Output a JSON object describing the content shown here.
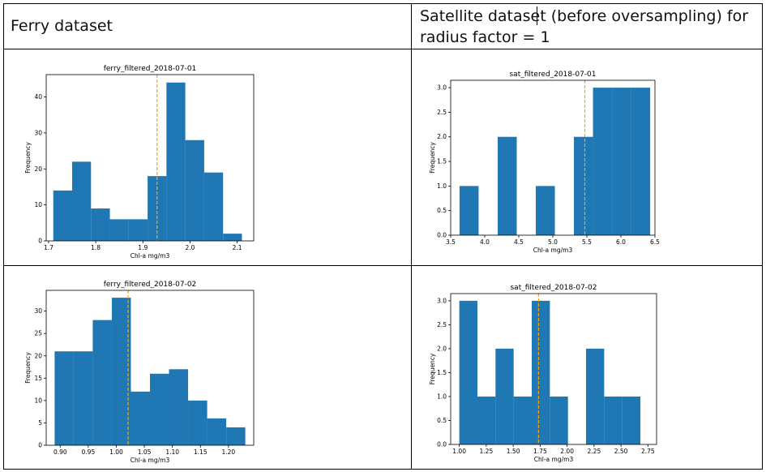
{
  "table": {
    "header_left": "Ferry dataset",
    "header_right_line1": "Satellite dataset (before oversampling) for",
    "header_right_line2": "radius factor = 1"
  },
  "chart_data": [
    {
      "id": "ferry1",
      "type": "bar",
      "title": "ferry_filtered_2018-07-01",
      "xlabel": "Chl-a mg/m3",
      "ylabel": "Frequency",
      "xlim": [
        1.695,
        2.135
      ],
      "ylim": [
        0,
        46.2
      ],
      "xticks": [
        1.7,
        1.8,
        1.9,
        2.0,
        2.1
      ],
      "xtick_labels": [
        "1.7",
        "1.8",
        "1.9",
        "2.0",
        "2.1"
      ],
      "yticks": [
        0,
        10,
        20,
        30,
        40
      ],
      "ytick_labels": [
        "0",
        "10",
        "20",
        "30",
        "40"
      ],
      "bins": [
        {
          "x0": 1.71,
          "x1": 1.75,
          "value": 14
        },
        {
          "x0": 1.75,
          "x1": 1.79,
          "value": 22
        },
        {
          "x0": 1.79,
          "x1": 1.83,
          "value": 9
        },
        {
          "x0": 1.83,
          "x1": 1.87,
          "value": 6
        },
        {
          "x0": 1.87,
          "x1": 1.91,
          "value": 6
        },
        {
          "x0": 1.91,
          "x1": 1.95,
          "value": 18
        },
        {
          "x0": 1.95,
          "x1": 1.99,
          "value": 44
        },
        {
          "x0": 1.99,
          "x1": 2.03,
          "value": 28
        },
        {
          "x0": 2.03,
          "x1": 2.07,
          "value": 19
        },
        {
          "x0": 2.07,
          "x1": 2.11,
          "value": 2
        }
      ],
      "vline": 1.93,
      "bar_color": "#1f77b4",
      "vline_color": "#ffa500"
    },
    {
      "id": "sat1",
      "type": "bar",
      "title": "sat_filtered_2018-07-01",
      "xlabel": "Chl-a mg/m3",
      "ylabel": "Frequency",
      "xlim": [
        3.5,
        6.5
      ],
      "ylim": [
        0,
        3.15
      ],
      "xticks": [
        3.5,
        4.0,
        4.5,
        5.0,
        5.5,
        6.0,
        6.5
      ],
      "xtick_labels": [
        "3.5",
        "4.0",
        "4.5",
        "5.0",
        "5.5",
        "6.0",
        "6.5"
      ],
      "yticks": [
        0,
        0.5,
        1.0,
        1.5,
        2.0,
        2.5,
        3.0
      ],
      "ytick_labels": [
        "0.0",
        "0.5",
        "1.0",
        "1.5",
        "2.0",
        "2.5",
        "3.0"
      ],
      "bins": [
        {
          "x0": 3.63,
          "x1": 3.91,
          "value": 1
        },
        {
          "x0": 3.91,
          "x1": 4.19,
          "value": 0
        },
        {
          "x0": 4.19,
          "x1": 4.47,
          "value": 2
        },
        {
          "x0": 4.47,
          "x1": 4.75,
          "value": 0
        },
        {
          "x0": 4.75,
          "x1": 5.03,
          "value": 1
        },
        {
          "x0": 5.03,
          "x1": 5.31,
          "value": 0
        },
        {
          "x0": 5.31,
          "x1": 5.59,
          "value": 2
        },
        {
          "x0": 5.59,
          "x1": 5.87,
          "value": 3
        },
        {
          "x0": 5.87,
          "x1": 6.15,
          "value": 3
        },
        {
          "x0": 6.15,
          "x1": 6.43,
          "value": 3
        }
      ],
      "vline": 5.47,
      "bar_color": "#1f77b4",
      "vline_color": "#ffa500"
    },
    {
      "id": "ferry2",
      "type": "bar",
      "title": "ferry_filtered_2018-07-02",
      "xlabel": "Chl-a mg/m3",
      "ylabel": "Frequency",
      "xlim": [
        0.875,
        1.245
      ],
      "ylim": [
        0,
        34.65
      ],
      "xticks": [
        0.9,
        0.95,
        1.0,
        1.05,
        1.1,
        1.15,
        1.2
      ],
      "xtick_labels": [
        "0.90",
        "0.95",
        "1.00",
        "1.05",
        "1.10",
        "1.15",
        "1.20"
      ],
      "yticks": [
        0,
        5,
        10,
        15,
        20,
        25,
        30
      ],
      "ytick_labels": [
        "0",
        "5",
        "10",
        "15",
        "20",
        "25",
        "30"
      ],
      "bins": [
        {
          "x0": 0.89,
          "x1": 0.924,
          "value": 21
        },
        {
          "x0": 0.924,
          "x1": 0.958,
          "value": 21
        },
        {
          "x0": 0.958,
          "x1": 0.992,
          "value": 28
        },
        {
          "x0": 0.992,
          "x1": 1.026,
          "value": 33
        },
        {
          "x0": 1.026,
          "x1": 1.06,
          "value": 12
        },
        {
          "x0": 1.06,
          "x1": 1.094,
          "value": 16
        },
        {
          "x0": 1.094,
          "x1": 1.128,
          "value": 17
        },
        {
          "x0": 1.128,
          "x1": 1.162,
          "value": 10
        },
        {
          "x0": 1.162,
          "x1": 1.196,
          "value": 6
        },
        {
          "x0": 1.196,
          "x1": 1.23,
          "value": 4
        }
      ],
      "vline": 1.021,
      "bar_color": "#1f77b4",
      "vline_color": "#ffa500"
    },
    {
      "id": "sat2",
      "type": "bar",
      "title": "sat_filtered_2018-07-02",
      "xlabel": "Chl-a mg/m3",
      "ylabel": "Frequency",
      "xlim": [
        0.92,
        2.83
      ],
      "ylim": [
        0,
        3.15
      ],
      "xticks": [
        1.0,
        1.25,
        1.5,
        1.75,
        2.0,
        2.25,
        2.5,
        2.75
      ],
      "xtick_labels": [
        "1.00",
        "1.25",
        "1.50",
        "1.75",
        "2.00",
        "2.25",
        "2.50",
        "2.75"
      ],
      "yticks": [
        0,
        0.5,
        1.0,
        1.5,
        2.0,
        2.5,
        3.0
      ],
      "ytick_labels": [
        "0.0",
        "0.5",
        "1.0",
        "1.5",
        "2.0",
        "2.5",
        "3.0"
      ],
      "bins": [
        {
          "x0": 1.0,
          "x1": 1.168,
          "value": 3
        },
        {
          "x0": 1.168,
          "x1": 1.336,
          "value": 1
        },
        {
          "x0": 1.336,
          "x1": 1.504,
          "value": 2
        },
        {
          "x0": 1.504,
          "x1": 1.672,
          "value": 1
        },
        {
          "x0": 1.672,
          "x1": 1.84,
          "value": 3
        },
        {
          "x0": 1.84,
          "x1": 2.008,
          "value": 1
        },
        {
          "x0": 2.008,
          "x1": 2.176,
          "value": 0
        },
        {
          "x0": 2.176,
          "x1": 2.344,
          "value": 2
        },
        {
          "x0": 2.344,
          "x1": 2.512,
          "value": 1
        },
        {
          "x0": 2.512,
          "x1": 2.68,
          "value": 1
        }
      ],
      "vline": 1.735,
      "bar_color": "#1f77b4",
      "vline_color": "#ffa500"
    }
  ]
}
